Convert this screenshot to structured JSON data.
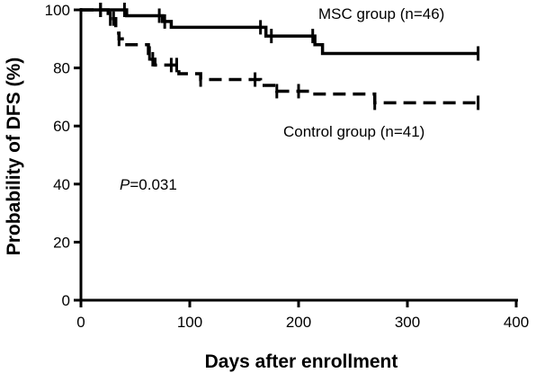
{
  "chart_data": {
    "type": "line",
    "chart_kind": "kaplan-meier step",
    "title": "",
    "xlabel": "Days after enrollment",
    "ylabel": "Probability of DFS (%)",
    "xlim": [
      0,
      400
    ],
    "ylim": [
      0,
      100
    ],
    "x_ticks": [
      0,
      100,
      200,
      300,
      400
    ],
    "y_ticks": [
      0,
      20,
      40,
      60,
      80,
      100
    ],
    "grid": false,
    "series": [
      {
        "name": "MSC group (n=46)",
        "line_style": "solid",
        "color": "#000000",
        "steps": [
          [
            0,
            100
          ],
          [
            42,
            98
          ],
          [
            75,
            96
          ],
          [
            83,
            94
          ],
          [
            170,
            91
          ],
          [
            215,
            88
          ],
          [
            222,
            85
          ],
          [
            365,
            85
          ]
        ],
        "censor_x": [
          18,
          40,
          72,
          77,
          165,
          175,
          213,
          365
        ]
      },
      {
        "name": "Control group (n=41)",
        "line_style": "dashed",
        "color": "#000000",
        "steps": [
          [
            0,
            100
          ],
          [
            25,
            97
          ],
          [
            32,
            92
          ],
          [
            35,
            90
          ],
          [
            38,
            88
          ],
          [
            62,
            85
          ],
          [
            65,
            83
          ],
          [
            68,
            81
          ],
          [
            90,
            78
          ],
          [
            110,
            76
          ],
          [
            165,
            74
          ],
          [
            180,
            72
          ],
          [
            210,
            71
          ],
          [
            270,
            68
          ],
          [
            365,
            68
          ]
        ],
        "censor_x": [
          18,
          27,
          30,
          35,
          63,
          66,
          83,
          88,
          110,
          160,
          180,
          200,
          270,
          365
        ]
      }
    ],
    "annotations": [
      {
        "id": "pvalue",
        "label": "P",
        "value": "=0.031"
      }
    ]
  }
}
